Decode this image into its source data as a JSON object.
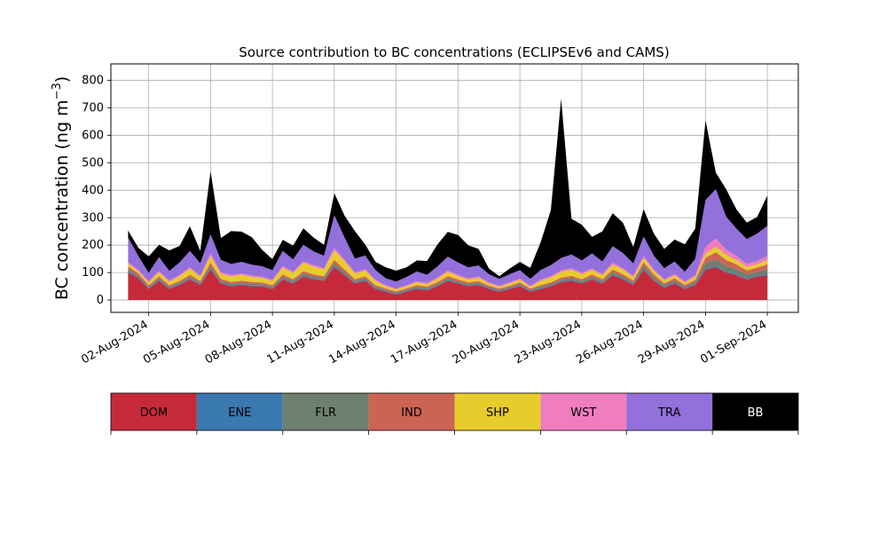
{
  "chart_data": {
    "type": "area",
    "title": "Source contribution to BC concentrations (ECLIPSEv6 and CAMS)",
    "ylabel": "BC concentration (ng m",
    "ylabel_sup": "−3",
    "ylabel_close": ")",
    "xlabel": "",
    "ylim": [
      -45,
      860
    ],
    "yticks": [
      0,
      100,
      200,
      300,
      400,
      500,
      600,
      700,
      800
    ],
    "xlim": [
      "2024-07-31T04:00",
      "2024-09-02T12:00"
    ],
    "xticks": [
      "2024-08-02",
      "2024-08-05",
      "2024-08-08",
      "2024-08-11",
      "2024-08-14",
      "2024-08-17",
      "2024-08-20",
      "2024-08-23",
      "2024-08-26",
      "2024-08-29",
      "2024-09-01"
    ],
    "xtick_labels": [
      "02-Aug-2024",
      "05-Aug-2024",
      "08-Aug-2024",
      "11-Aug-2024",
      "14-Aug-2024",
      "17-Aug-2024",
      "20-Aug-2024",
      "23-Aug-2024",
      "26-Aug-2024",
      "29-Aug-2024",
      "01-Sep-2024"
    ],
    "grid": true,
    "stacked": true,
    "x": [
      "2024-08-01T00:00",
      "2024-08-01T12:00",
      "2024-08-02T00:00",
      "2024-08-02T12:00",
      "2024-08-03T00:00",
      "2024-08-03T12:00",
      "2024-08-04T00:00",
      "2024-08-04T12:00",
      "2024-08-05T00:00",
      "2024-08-05T12:00",
      "2024-08-06T00:00",
      "2024-08-06T12:00",
      "2024-08-07T00:00",
      "2024-08-07T12:00",
      "2024-08-08T00:00",
      "2024-08-08T12:00",
      "2024-08-09T00:00",
      "2024-08-09T12:00",
      "2024-08-10T00:00",
      "2024-08-10T12:00",
      "2024-08-11T00:00",
      "2024-08-11T12:00",
      "2024-08-12T00:00",
      "2024-08-12T12:00",
      "2024-08-13T00:00",
      "2024-08-13T12:00",
      "2024-08-14T00:00",
      "2024-08-14T12:00",
      "2024-08-15T00:00",
      "2024-08-15T12:00",
      "2024-08-16T00:00",
      "2024-08-16T12:00",
      "2024-08-17T00:00",
      "2024-08-17T12:00",
      "2024-08-18T00:00",
      "2024-08-18T12:00",
      "2024-08-19T00:00",
      "2024-08-19T12:00",
      "2024-08-20T00:00",
      "2024-08-20T12:00",
      "2024-08-21T00:00",
      "2024-08-21T12:00",
      "2024-08-22T00:00",
      "2024-08-22T12:00",
      "2024-08-23T00:00",
      "2024-08-23T12:00",
      "2024-08-24T00:00",
      "2024-08-24T12:00",
      "2024-08-25T00:00",
      "2024-08-25T12:00",
      "2024-08-26T00:00",
      "2024-08-26T12:00",
      "2024-08-27T00:00",
      "2024-08-27T12:00",
      "2024-08-28T00:00",
      "2024-08-28T12:00",
      "2024-08-29T00:00",
      "2024-08-29T12:00",
      "2024-08-30T00:00",
      "2024-08-30T12:00",
      "2024-08-31T00:00",
      "2024-08-31T12:00",
      "2024-09-01T00:00"
    ],
    "series": [
      {
        "name": "DOM",
        "color": "#c62a3a",
        "values": [
          100,
          80,
          40,
          70,
          40,
          55,
          75,
          55,
          110,
          60,
          50,
          55,
          50,
          50,
          40,
          75,
          60,
          85,
          75,
          70,
          120,
          90,
          60,
          70,
          40,
          30,
          20,
          30,
          40,
          35,
          50,
          70,
          60,
          50,
          55,
          40,
          30,
          40,
          50,
          30,
          40,
          50,
          65,
          70,
          60,
          75,
          60,
          90,
          75,
          55,
          110,
          70,
          45,
          60,
          40,
          55,
          110,
          120,
          100,
          90,
          75,
          85,
          90
        ]
      },
      {
        "name": "ENE",
        "color": "#3a78b0",
        "values": [
          4,
          3,
          3,
          3,
          3,
          3,
          3,
          3,
          4,
          3,
          3,
          3,
          3,
          3,
          3,
          3,
          3,
          3,
          3,
          3,
          4,
          3,
          3,
          3,
          3,
          3,
          3,
          3,
          3,
          3,
          3,
          3,
          3,
          3,
          3,
          3,
          3,
          3,
          3,
          3,
          3,
          3,
          3,
          3,
          3,
          3,
          3,
          3,
          3,
          3,
          4,
          3,
          3,
          3,
          3,
          3,
          4,
          4,
          4,
          4,
          3,
          3,
          4
        ]
      },
      {
        "name": "FLR",
        "color": "#6d7f6e",
        "values": [
          8,
          6,
          5,
          6,
          5,
          5,
          6,
          5,
          10,
          6,
          6,
          5,
          6,
          5,
          5,
          7,
          6,
          8,
          7,
          6,
          10,
          8,
          6,
          6,
          5,
          4,
          4,
          4,
          5,
          5,
          5,
          6,
          5,
          5,
          5,
          4,
          4,
          4,
          5,
          4,
          5,
          5,
          6,
          7,
          6,
          7,
          6,
          8,
          7,
          6,
          12,
          10,
          6,
          8,
          6,
          8,
          20,
          25,
          20,
          18,
          15,
          15,
          18
        ]
      },
      {
        "name": "IND",
        "color": "#cc6454",
        "values": [
          10,
          8,
          6,
          7,
          6,
          6,
          8,
          6,
          12,
          8,
          7,
          7,
          7,
          6,
          6,
          8,
          7,
          9,
          8,
          8,
          12,
          10,
          7,
          8,
          6,
          5,
          5,
          5,
          6,
          6,
          7,
          8,
          7,
          6,
          6,
          5,
          5,
          5,
          6,
          5,
          6,
          6,
          8,
          8,
          7,
          8,
          7,
          10,
          9,
          7,
          12,
          10,
          7,
          8,
          6,
          8,
          20,
          25,
          22,
          18,
          15,
          15,
          18
        ]
      },
      {
        "name": "SHP",
        "color": "#e8cc2c",
        "values": [
          10,
          8,
          10,
          15,
          12,
          18,
          22,
          15,
          25,
          18,
          20,
          22,
          18,
          16,
          15,
          25,
          22,
          30,
          28,
          24,
          35,
          30,
          20,
          20,
          15,
          8,
          6,
          8,
          10,
          8,
          12,
          15,
          12,
          10,
          12,
          8,
          6,
          8,
          10,
          6,
          15,
          18,
          20,
          22,
          18,
          16,
          14,
          18,
          16,
          12,
          15,
          12,
          10,
          10,
          8,
          10,
          15,
          20,
          18,
          15,
          12,
          12,
          15
        ]
      },
      {
        "name": "WST",
        "color": "#f07ebe",
        "values": [
          6,
          5,
          5,
          5,
          5,
          5,
          5,
          5,
          8,
          6,
          5,
          5,
          5,
          5,
          5,
          6,
          5,
          6,
          6,
          5,
          8,
          6,
          5,
          5,
          5,
          4,
          4,
          4,
          5,
          5,
          5,
          6,
          5,
          5,
          5,
          4,
          4,
          4,
          5,
          4,
          5,
          5,
          6,
          6,
          5,
          6,
          5,
          7,
          6,
          5,
          8,
          6,
          5,
          6,
          5,
          6,
          25,
          30,
          20,
          15,
          12,
          12,
          15
        ]
      },
      {
        "name": "TRA",
        "color": "#9370db",
        "values": [
          90,
          50,
          30,
          50,
          35,
          45,
          60,
          45,
          70,
          45,
          40,
          42,
          40,
          38,
          35,
          55,
          45,
          60,
          50,
          45,
          120,
          80,
          50,
          50,
          35,
          25,
          25,
          30,
          35,
          30,
          40,
          50,
          45,
          40,
          40,
          30,
          25,
          30,
          30,
          25,
          35,
          40,
          45,
          50,
          45,
          55,
          45,
          60,
          55,
          45,
          70,
          50,
          40,
          45,
          35,
          60,
          170,
          180,
          120,
          100,
          90,
          100,
          110
        ]
      },
      {
        "name": "BB",
        "color": "#000000",
        "values": [
          25,
          30,
          60,
          45,
          75,
          60,
          90,
          45,
          230,
          80,
          120,
          110,
          100,
          60,
          40,
          40,
          50,
          60,
          50,
          40,
          80,
          80,
          100,
          40,
          30,
          40,
          40,
          35,
          40,
          50,
          80,
          90,
          100,
          80,
          60,
          20,
          10,
          20,
          30,
          40,
          100,
          200,
          580,
          130,
          130,
          60,
          110,
          120,
          110,
          60,
          100,
          80,
          70,
          80,
          100,
          110,
          290,
          60,
          100,
          70,
          60,
          60,
          110
        ]
      }
    ]
  },
  "legend": {
    "placement": "bottom",
    "entries": [
      {
        "label": "DOM",
        "color": "#c62a3a",
        "text_color": "#000000"
      },
      {
        "label": "ENE",
        "color": "#3a78b0",
        "text_color": "#000000"
      },
      {
        "label": "FLR",
        "color": "#6d7f6e",
        "text_color": "#000000"
      },
      {
        "label": "IND",
        "color": "#cc6454",
        "text_color": "#000000"
      },
      {
        "label": "SHP",
        "color": "#e8cc2c",
        "text_color": "#000000"
      },
      {
        "label": "WST",
        "color": "#f07ebe",
        "text_color": "#000000"
      },
      {
        "label": "TRA",
        "color": "#9370db",
        "text_color": "#000000"
      },
      {
        "label": "BB",
        "color": "#000000",
        "text_color": "#ffffff"
      }
    ]
  }
}
